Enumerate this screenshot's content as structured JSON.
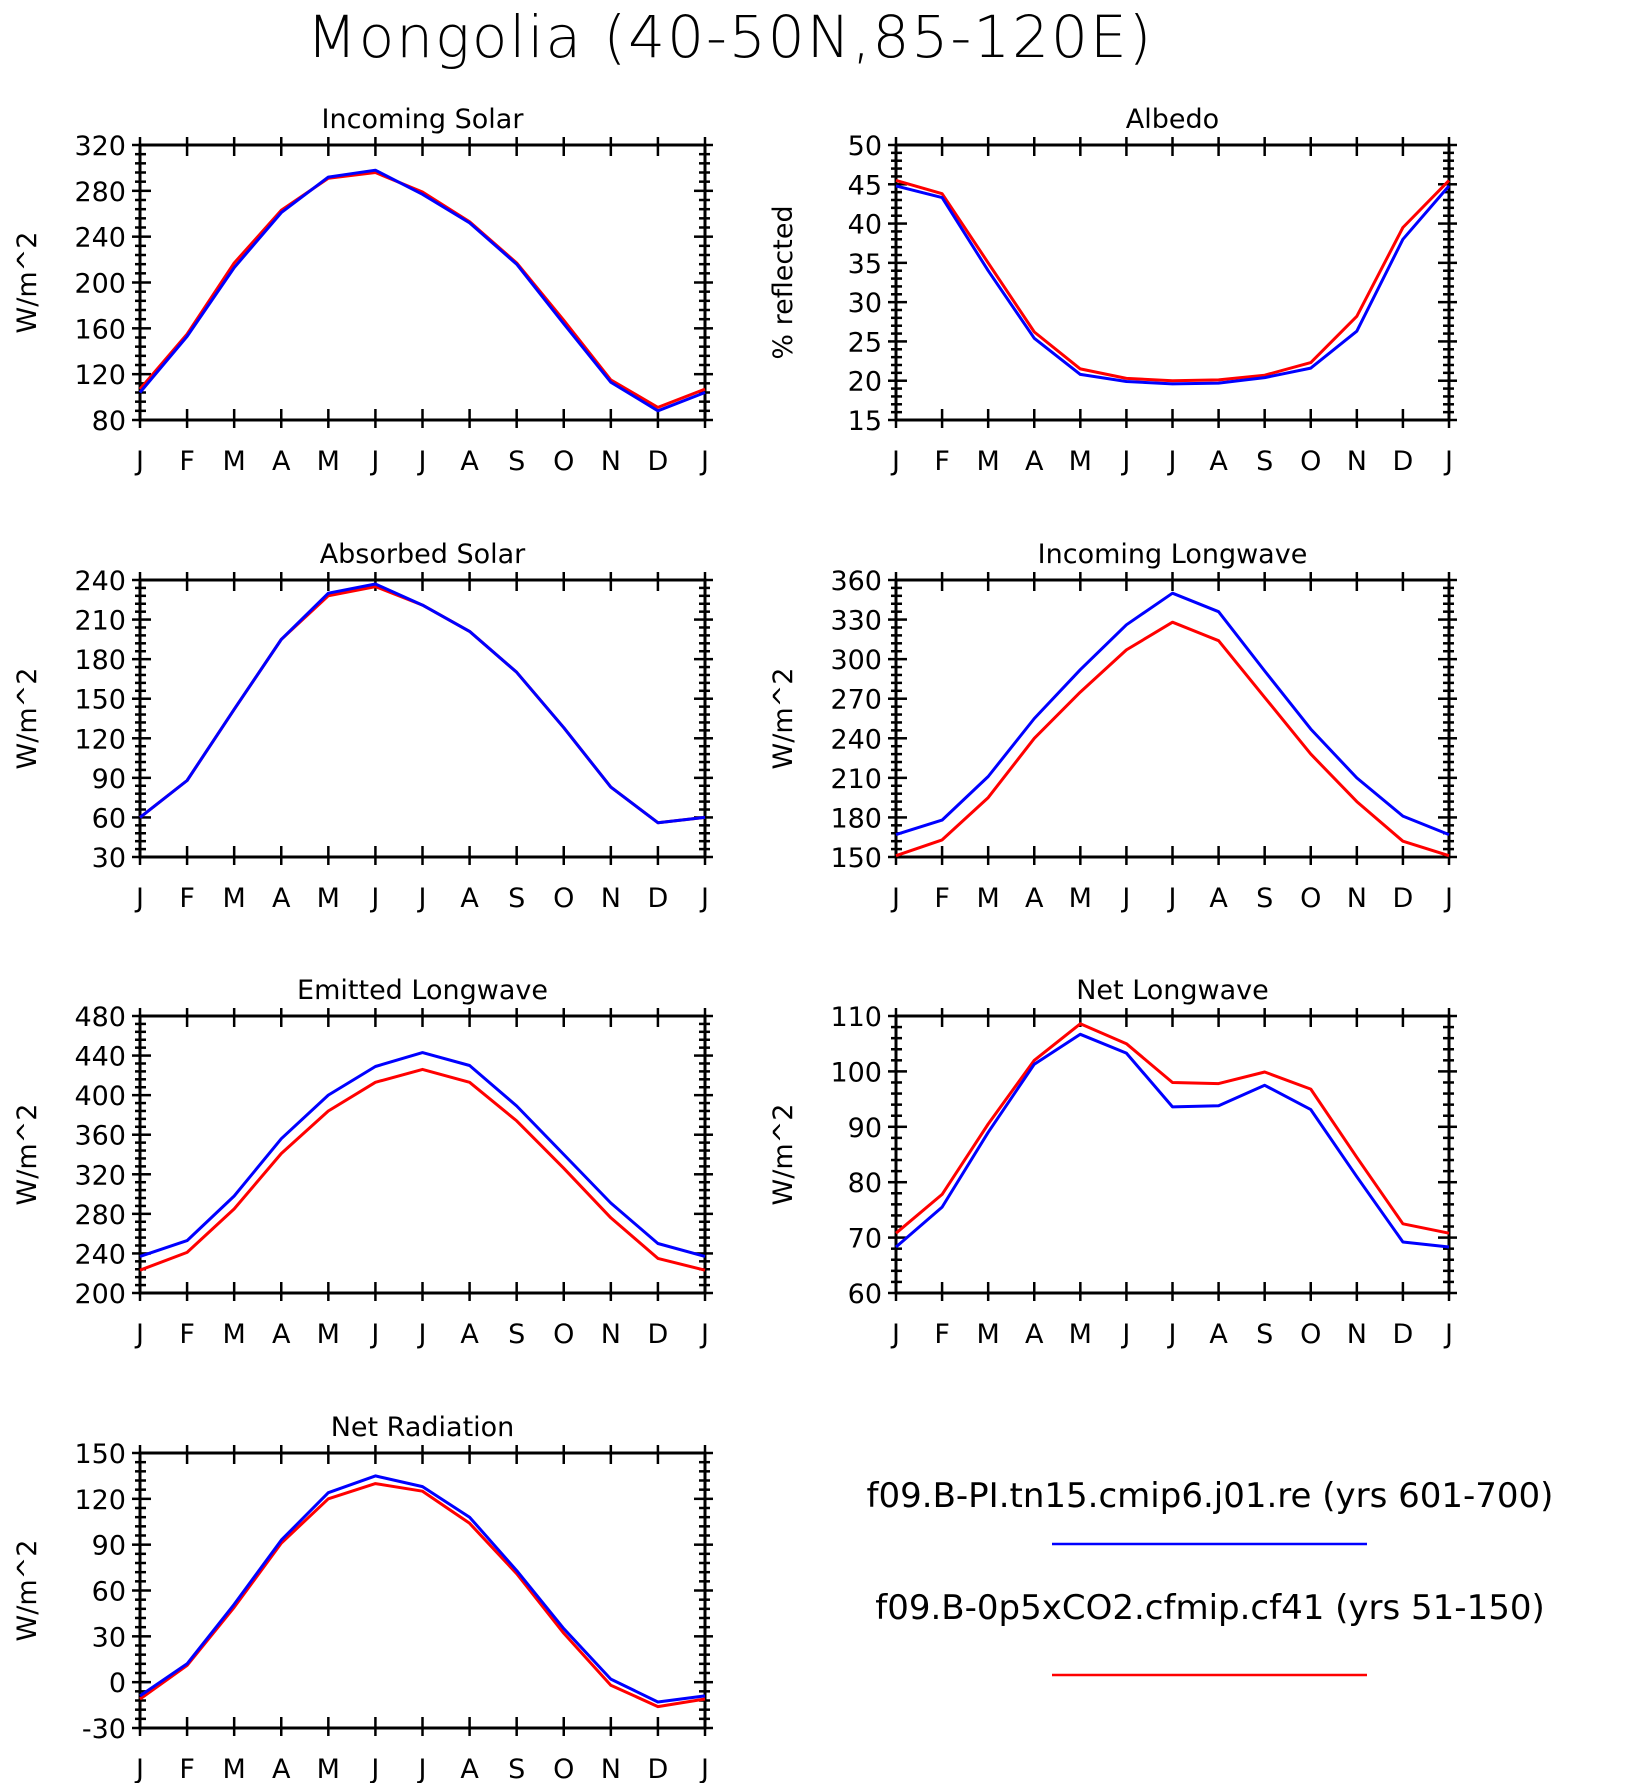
{
  "title": "Mongolia (40-50N,85-120E)",
  "legend": [
    {
      "label": "f09.B-PI.tn15.cmip6.j01.re (yrs 601-700)",
      "color": "#0000ff"
    },
    {
      "label": "f09.B-0p5xCO2.cfmip.cf41 (yrs 51-150)",
      "color": "#ff0000"
    }
  ],
  "chart_data": [
    {
      "type": "line",
      "title": "Incoming Solar",
      "ylabel": "W/m^2",
      "categories": [
        "J",
        "F",
        "M",
        "A",
        "M",
        "J",
        "J",
        "A",
        "S",
        "O",
        "N",
        "D",
        "J"
      ],
      "ylim": [
        80,
        320
      ],
      "yticks": [
        80,
        120,
        160,
        200,
        240,
        280,
        320
      ],
      "series": [
        {
          "color": "#ff0000",
          "values": [
            107,
            155,
            217,
            263,
            291,
            296,
            279,
            253,
            217,
            167,
            115,
            91,
            107
          ]
        },
        {
          "color": "#0000ff",
          "values": [
            104,
            153,
            213,
            261,
            292,
            298,
            277,
            252,
            216,
            164,
            113,
            88,
            104
          ]
        }
      ]
    },
    {
      "type": "line",
      "title": "Albedo",
      "ylabel": "% reflected",
      "categories": [
        "J",
        "F",
        "M",
        "A",
        "M",
        "J",
        "J",
        "A",
        "S",
        "O",
        "N",
        "D",
        "J"
      ],
      "ylim": [
        15,
        50
      ],
      "yticks": [
        15,
        20,
        25,
        30,
        35,
        40,
        45,
        50
      ],
      "series": [
        {
          "color": "#ff0000",
          "values": [
            45.5,
            43.8,
            35.0,
            26.2,
            21.5,
            20.3,
            20.0,
            20.1,
            20.7,
            22.3,
            28.2,
            39.5,
            45.5
          ]
        },
        {
          "color": "#0000ff",
          "values": [
            44.8,
            43.3,
            34.0,
            25.4,
            20.8,
            19.9,
            19.6,
            19.7,
            20.4,
            21.6,
            26.3,
            38.0,
            44.8
          ]
        }
      ]
    },
    {
      "type": "line",
      "title": "Absorbed Solar",
      "ylabel": "W/m^2",
      "categories": [
        "J",
        "F",
        "M",
        "A",
        "M",
        "J",
        "J",
        "A",
        "S",
        "O",
        "N",
        "D",
        "J"
      ],
      "ylim": [
        30,
        240
      ],
      "yticks": [
        30,
        60,
        90,
        120,
        150,
        180,
        210,
        240
      ],
      "series": [
        {
          "color": "#ff0000",
          "values": [
            60,
            88,
            142,
            195,
            228,
            235,
            221,
            201,
            170,
            128,
            83,
            56,
            60
          ]
        },
        {
          "color": "#0000ff",
          "values": [
            60,
            88,
            142,
            195,
            230,
            237,
            221,
            201,
            170,
            128,
            83,
            56,
            60
          ]
        }
      ]
    },
    {
      "type": "line",
      "title": "Incoming Longwave",
      "ylabel": "W/m^2",
      "categories": [
        "J",
        "F",
        "M",
        "A",
        "M",
        "J",
        "J",
        "A",
        "S",
        "O",
        "N",
        "D",
        "J"
      ],
      "ylim": [
        150,
        360
      ],
      "yticks": [
        150,
        180,
        210,
        240,
        270,
        300,
        330,
        360
      ],
      "series": [
        {
          "color": "#ff0000",
          "values": [
            151,
            163,
            195,
            240,
            275,
            307,
            328,
            314,
            271,
            228,
            192,
            162,
            151
          ]
        },
        {
          "color": "#0000ff",
          "values": [
            167,
            178,
            211,
            255,
            292,
            326,
            350,
            336,
            291,
            247,
            210,
            181,
            167
          ]
        }
      ]
    },
    {
      "type": "line",
      "title": "Emitted Longwave",
      "ylabel": "W/m^2",
      "categories": [
        "J",
        "F",
        "M",
        "A",
        "M",
        "J",
        "J",
        "A",
        "S",
        "O",
        "N",
        "D",
        "J"
      ],
      "ylim": [
        200,
        480
      ],
      "yticks": [
        200,
        240,
        280,
        320,
        360,
        400,
        440,
        480
      ],
      "series": [
        {
          "color": "#ff0000",
          "values": [
            223,
            241,
            285,
            341,
            384,
            413,
            426,
            413,
            374,
            326,
            276,
            235,
            223
          ]
        },
        {
          "color": "#0000ff",
          "values": [
            237,
            253,
            298,
            356,
            400,
            429,
            443,
            430,
            389,
            340,
            291,
            250,
            237
          ]
        }
      ]
    },
    {
      "type": "line",
      "title": "Net Longwave",
      "ylabel": "W/m^2",
      "categories": [
        "J",
        "F",
        "M",
        "A",
        "M",
        "J",
        "J",
        "A",
        "S",
        "O",
        "N",
        "D",
        "J"
      ],
      "ylim": [
        60,
        110
      ],
      "yticks": [
        60,
        70,
        80,
        90,
        100,
        110
      ],
      "series": [
        {
          "color": "#ff0000",
          "values": [
            70.8,
            77.8,
            90.5,
            102.0,
            108.6,
            105.0,
            98.0,
            97.8,
            99.9,
            96.8,
            84.5,
            72.5,
            70.8
          ]
        },
        {
          "color": "#0000ff",
          "values": [
            68.3,
            75.5,
            89.0,
            101.3,
            106.7,
            103.3,
            93.6,
            93.8,
            97.5,
            93.1,
            81.0,
            69.2,
            68.3
          ]
        }
      ]
    },
    {
      "type": "line",
      "title": "Net Radiation",
      "ylabel": "W/m^2",
      "categories": [
        "J",
        "F",
        "M",
        "A",
        "M",
        "J",
        "J",
        "A",
        "S",
        "O",
        "N",
        "D",
        "J"
      ],
      "ylim": [
        -30,
        150
      ],
      "yticks": [
        -30,
        0,
        30,
        60,
        90,
        120,
        150
      ],
      "series": [
        {
          "color": "#ff0000",
          "values": [
            -11,
            11,
            49,
            91,
            120,
            130,
            125,
            104,
            71,
            32,
            -2,
            -16,
            -11
          ]
        },
        {
          "color": "#0000ff",
          "values": [
            -9,
            12,
            51,
            93,
            124,
            135,
            128,
            108,
            73,
            35,
            2,
            -13,
            -9
          ]
        }
      ]
    }
  ]
}
